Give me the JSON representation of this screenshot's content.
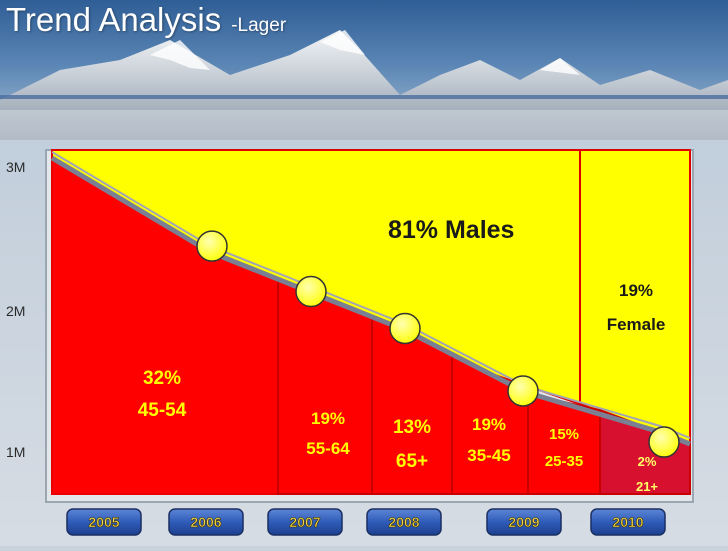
{
  "header": {
    "title": "Trend Analysis",
    "subtitle": "-Lager"
  },
  "colors": {
    "segment": "#ff0000",
    "male_area": "#ffff00",
    "female_area": "#ffff00",
    "text": "#1a1a1a"
  },
  "chart_data": {
    "type": "area",
    "title": "Trend Analysis",
    "subtitle": "-Lager",
    "ylim": [
      0,
      3000000
    ],
    "y_ticks": [
      {
        "label": "3M",
        "value": 3000000
      },
      {
        "label": "2M",
        "value": 2000000
      },
      {
        "label": "1M",
        "value": 1000000
      }
    ],
    "categories": [
      "2005",
      "2006",
      "2007",
      "2008",
      "2009",
      "2010"
    ],
    "trend_points": [
      {
        "year": "2006",
        "value": 2450000
      },
      {
        "year": "2007",
        "value": 2130000
      },
      {
        "year": "2008",
        "value": 1870000
      },
      {
        "year": "2009",
        "value": 1430000
      },
      {
        "year": "2010",
        "value": 1070000
      }
    ],
    "annotations": {
      "males": "81% Males",
      "female_pct": "19%",
      "female_label": "Female"
    },
    "segments": [
      {
        "pct": "32%",
        "label": "45-54"
      },
      {
        "pct": "19%",
        "label": "55-64"
      },
      {
        "pct": "13%",
        "label": "65+"
      },
      {
        "pct": "19%",
        "label": "35-45"
      },
      {
        "pct": "15%",
        "label": "25-35"
      },
      {
        "pct": "2%",
        "label": "21+"
      }
    ]
  }
}
